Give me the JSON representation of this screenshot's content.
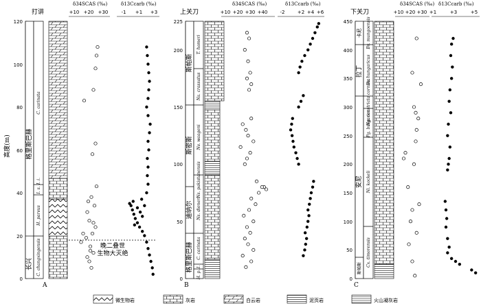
{
  "common": {
    "ylabel": "高度(m)",
    "s_axis_label": "δ34SCAS (‰)",
    "c_axis_label": "δ13Ccarb (‰)"
  },
  "panels": {
    "A": {
      "letter": "A",
      "site": "打讲",
      "yticks": [
        "0",
        "20",
        "40",
        "60",
        "80",
        "100",
        "120"
      ],
      "s_ticks": [
        "+10",
        "+20",
        "+30"
      ],
      "c_ticks": [
        "-1",
        "+1",
        "+3"
      ],
      "stage_labels": [
        "长兴",
        "格里斯巴赫"
      ],
      "zone_labels": [
        "C. changxingensis",
        "H. parvus",
        "I. s.",
        "I. i.",
        "C. carinata"
      ],
      "extinction_label_1": "晚二叠世",
      "extinction_label_2": "生物大灭绝"
    },
    "B": {
      "letter": "B",
      "site": "上关刀",
      "yticks": [
        "0",
        "50",
        "100",
        "150",
        "200",
        "225"
      ],
      "s_ticks": [
        "+10",
        "+20",
        "+30",
        "+40"
      ],
      "c_ticks": [
        "-2",
        "+2",
        "+4",
        "+6"
      ],
      "stage_labels": [
        "格里斯巴赫",
        "迪纳尔",
        "斯密斯",
        "斯帕斯"
      ],
      "zone_labels": [
        "H. p.",
        "C. carinata",
        "I.",
        "Ns. dieneri",
        "Ns. pakistanensis",
        "Nv. waageni",
        "Ns. crassatus",
        "T. homeri"
      ]
    },
    "C": {
      "letter": "C",
      "site": "下关刀",
      "yticks": [
        "0",
        "50",
        "100",
        "150",
        "200",
        "250",
        "300",
        "350",
        "400",
        "450"
      ],
      "s_ticks": [
        "+10",
        "+20",
        "+30"
      ],
      "c_ticks": [
        "+1",
        "+3",
        "+5"
      ],
      "stage_labels": [
        "斯帕斯",
        "安尼",
        "拉丁",
        "卡尼"
      ],
      "zone_labels": [
        "Cx. timorensis",
        "Ni. kockeli",
        "Pg. bulgarica",
        "Ng. constricta cornuta",
        "Bv. hungaricus",
        "Bv. mungoensis"
      ]
    }
  },
  "legend": [
    "微生物岩",
    "灰岩",
    "白云岩",
    "泥页岩",
    "火山凝灰岩"
  ],
  "chart_data": [
    {
      "type": "scatter",
      "title": "打讲",
      "ylabel": "高度(m)",
      "ylim": [
        0,
        120
      ],
      "series": [
        {
          "name": "δ34SCAS (‰)",
          "xlim": [
            0,
            40
          ],
          "points": [
            [
              22,
              5
            ],
            [
              20,
              8
            ],
            [
              18,
              10
            ],
            [
              24,
              12
            ],
            [
              21,
              15
            ],
            [
              17,
              19
            ],
            [
              23,
              21
            ],
            [
              26,
              24
            ],
            [
              20,
              27
            ],
            [
              18,
              31
            ],
            [
              25,
              34
            ],
            [
              22,
              38
            ],
            [
              27,
              43
            ],
            [
              24,
              26
            ],
            [
              19,
              36
            ],
            [
              21,
              13
            ],
            [
              15,
              83
            ],
            [
              23,
              58
            ],
            [
              26,
              63
            ],
            [
              24,
              88
            ],
            [
              26,
              98
            ],
            [
              27,
              104
            ],
            [
              28,
              108
            ],
            [
              12,
              17
            ],
            [
              14,
              21
            ]
          ]
        },
        {
          "name": "δ13Ccarb (‰)",
          "xlim": [
            -2,
            4
          ],
          "points": [
            [
              3.1,
              2
            ],
            [
              3.0,
              5
            ],
            [
              2.8,
              8
            ],
            [
              2.6,
              11
            ],
            [
              2.4,
              14
            ],
            [
              2.2,
              17
            ],
            [
              1.9,
              20
            ],
            [
              1.6,
              22
            ],
            [
              1.2,
              24
            ],
            [
              0.9,
              26
            ],
            [
              0.6,
              28
            ],
            [
              0.4,
              30
            ],
            [
              0.2,
              32
            ],
            [
              0.0,
              34
            ],
            [
              0.3,
              36
            ],
            [
              0.9,
              33
            ],
            [
              1.3,
              31
            ],
            [
              1.6,
              29
            ],
            [
              1.9,
              34
            ],
            [
              1.5,
              37
            ],
            [
              2.2,
              40
            ],
            [
              2.4,
              44
            ],
            [
              2.3,
              48
            ],
            [
              2.4,
              52
            ],
            [
              2.3,
              56
            ],
            [
              2.5,
              60
            ],
            [
              2.4,
              64
            ],
            [
              2.6,
              68
            ],
            [
              2.7,
              72
            ],
            [
              2.4,
              76
            ],
            [
              2.2,
              80
            ],
            [
              2.4,
              84
            ],
            [
              2.5,
              88
            ],
            [
              2.6,
              92
            ],
            [
              2.5,
              96
            ],
            [
              2.4,
              100
            ],
            [
              2.3,
              104
            ],
            [
              2.2,
              108
            ],
            [
              -0.2,
              35
            ],
            [
              0.5,
              25
            ]
          ]
        }
      ]
    },
    {
      "type": "scatter",
      "title": "上关刀",
      "ylabel": "高度(m)",
      "ylim": [
        0,
        225
      ],
      "series": [
        {
          "name": "δ34SCAS (‰)",
          "xlim": [
            0,
            50
          ],
          "points": [
            [
              23,
              10
            ],
            [
              28,
              15
            ],
            [
              20,
              20
            ],
            [
              30,
              25
            ],
            [
              25,
              30
            ],
            [
              22,
              35
            ],
            [
              27,
              40
            ],
            [
              24,
              45
            ],
            [
              30,
              50
            ],
            [
              21,
              55
            ],
            [
              26,
              60
            ],
            [
              32,
              65
            ],
            [
              28,
              70
            ],
            [
              35,
              75
            ],
            [
              40,
              80
            ],
            [
              33,
              85
            ],
            [
              22,
              100
            ],
            [
              24,
              105
            ],
            [
              27,
              110
            ],
            [
              18,
              115
            ],
            [
              30,
              120
            ],
            [
              25,
              125
            ],
            [
              23,
              130
            ],
            [
              20,
              135
            ],
            [
              28,
              140
            ],
            [
              26,
              165
            ],
            [
              28,
              170
            ],
            [
              24,
              175
            ],
            [
              27,
              180
            ],
            [
              25,
              190
            ],
            [
              22,
              200
            ],
            [
              26,
              210
            ],
            [
              24,
              215
            ],
            [
              38,
              80
            ],
            [
              42,
              78
            ]
          ]
        },
        {
          "name": "δ13Ccarb (‰)",
          "xlim": [
            -3,
            7
          ],
          "points": [
            [
              2.5,
              20
            ],
            [
              2.8,
              25
            ],
            [
              3.0,
              30
            ],
            [
              3.2,
              35
            ],
            [
              2.9,
              40
            ],
            [
              3.3,
              45
            ],
            [
              3.5,
              50
            ],
            [
              3.7,
              55
            ],
            [
              3.5,
              60
            ],
            [
              3.8,
              65
            ],
            [
              4.0,
              70
            ],
            [
              4.2,
              75
            ],
            [
              4.5,
              80
            ],
            [
              4.7,
              85
            ],
            [
              1.5,
              100
            ],
            [
              1.2,
              105
            ],
            [
              0.9,
              110
            ],
            [
              0.5,
              115
            ],
            [
              0.3,
              120
            ],
            [
              0.1,
              125
            ],
            [
              -0.2,
              130
            ],
            [
              0.0,
              135
            ],
            [
              0.2,
              140
            ],
            [
              1.5,
              150
            ],
            [
              2.0,
              155
            ],
            [
              2.5,
              160
            ],
            [
              1.5,
              180
            ],
            [
              1.8,
              185
            ],
            [
              2.2,
              190
            ],
            [
              2.8,
              195
            ],
            [
              3.5,
              200
            ],
            [
              4.0,
              205
            ],
            [
              4.5,
              210
            ],
            [
              5.0,
              215
            ],
            [
              5.5,
              220
            ],
            [
              5.8,
              223
            ]
          ]
        }
      ]
    },
    {
      "type": "scatter",
      "title": "下关刀",
      "ylabel": "高度(m)",
      "ylim": [
        0,
        450
      ],
      "series": [
        {
          "name": "δ34SCAS (‰)",
          "xlim": [
            0,
            40
          ],
          "points": [
            [
              23,
              5
            ],
            [
              20,
              30
            ],
            [
              16,
              60
            ],
            [
              25,
              80
            ],
            [
              18,
              100
            ],
            [
              20,
              120
            ],
            [
              28,
              130
            ],
            [
              15,
              160
            ],
            [
              22,
              200
            ],
            [
              10,
              210
            ],
            [
              12,
              220
            ],
            [
              24,
              240
            ],
            [
              25,
              260
            ],
            [
              27,
              280
            ],
            [
              24,
              290
            ],
            [
              22,
              300
            ],
            [
              30,
              340
            ],
            [
              20,
              360
            ],
            [
              25,
              420
            ]
          ]
        },
        {
          "name": "δ13Ccarb (‰)",
          "xlim": [
            0,
            6
          ],
          "points": [
            [
              5.5,
              10
            ],
            [
              5.0,
              15
            ],
            [
              3.5,
              25
            ],
            [
              3.0,
              30
            ],
            [
              2.5,
              35
            ],
            [
              2.0,
              45
            ],
            [
              2.2,
              55
            ],
            [
              2.0,
              70
            ],
            [
              1.8,
              90
            ],
            [
              1.9,
              105
            ],
            [
              1.8,
              120
            ],
            [
              1.7,
              135
            ],
            [
              2.0,
              190
            ],
            [
              2.1,
              200
            ],
            [
              2.2,
              210
            ],
            [
              2.3,
              230
            ],
            [
              2.0,
              250
            ],
            [
              2.1,
              270
            ],
            [
              2.4,
              290
            ],
            [
              2.2,
              310
            ],
            [
              2.3,
              330
            ],
            [
              2.5,
              350
            ],
            [
              2.6,
              370
            ],
            [
              2.4,
              390
            ],
            [
              2.5,
              410
            ],
            [
              2.7,
              420
            ]
          ]
        }
      ]
    }
  ]
}
